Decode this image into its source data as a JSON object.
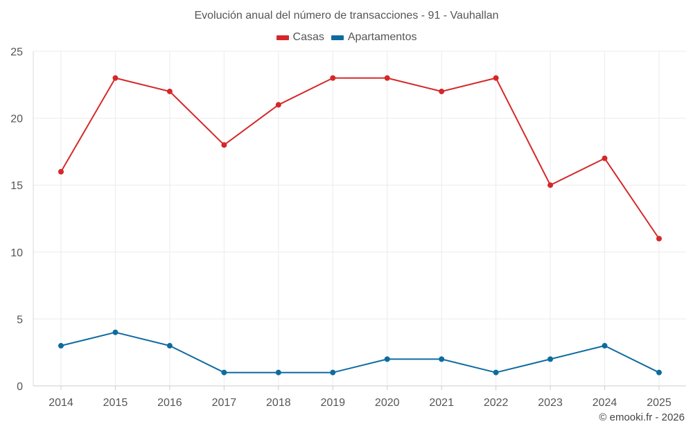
{
  "chart_data": {
    "type": "line",
    "title": "Evolución anual del número de transacciones - 91 - Vauhallan",
    "xlabel": "",
    "ylabel": "",
    "categories": [
      "2014",
      "2015",
      "2016",
      "2017",
      "2018",
      "2019",
      "2020",
      "2021",
      "2022",
      "2023",
      "2024",
      "2025"
    ],
    "series": [
      {
        "name": "Casas",
        "color": "#d62728",
        "values": [
          16,
          23,
          22,
          18,
          21,
          23,
          23,
          22,
          23,
          15,
          17,
          11
        ]
      },
      {
        "name": "Apartamentos",
        "color": "#0e6ba0",
        "values": [
          3,
          4,
          3,
          1,
          1,
          1,
          2,
          2,
          1,
          2,
          3,
          1
        ]
      }
    ],
    "ylim": [
      0,
      25
    ],
    "yticks": [
      0,
      5,
      10,
      15,
      20,
      25
    ],
    "grid": true,
    "legend_position": "top-center"
  },
  "credit": "© emooki.fr - 2026"
}
